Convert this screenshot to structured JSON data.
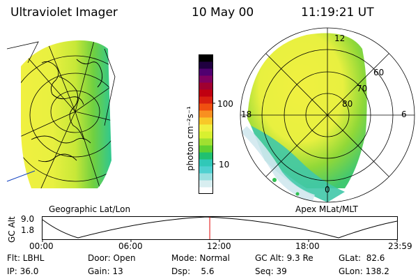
{
  "header": {
    "instrument": "Ultraviolet Imager",
    "date": "10 May 00",
    "time": "11:19:21 UT"
  },
  "left_panel": {
    "caption": "Geographic Lat/Lon"
  },
  "right_panel": {
    "caption": "Apex MLat/MLT",
    "mlt_labels": {
      "top": "12",
      "left": "18",
      "right": "6",
      "bottom": "0"
    },
    "lat_labels": [
      "60",
      "70",
      "80"
    ]
  },
  "colorbar": {
    "unit_label": "photon cm⁻²s⁻¹",
    "tick_100": "100",
    "tick_10": "10",
    "colors": [
      "#ffffff",
      "#d8eef0",
      "#9ae0e0",
      "#4fd0d0",
      "#30c8b8",
      "#20c070",
      "#60d030",
      "#a0e030",
      "#d8f030",
      "#f0f040",
      "#f8c828",
      "#f89020",
      "#f05010",
      "#d82010",
      "#c00010",
      "#a00030",
      "#800060",
      "#500070",
      "#200040",
      "#000000"
    ]
  },
  "timeline": {
    "ylabel": "GC Alt",
    "y_max": "9.0",
    "y_min": "1.8",
    "ticks": [
      "00:00",
      "06:00",
      "12:00",
      "18:00",
      "23:59"
    ],
    "marker_time_hours": 11.32
  },
  "info": {
    "row1": {
      "flt": "Flt: LBHL",
      "door": "Door: Open",
      "mode": "Mode: Normal",
      "gcalt": "GC Alt: 9.3 Re",
      "glat": "GLat:  82.6"
    },
    "row2": {
      "ip": "IP: 36.0",
      "gain": "Gain: 13",
      "dsp": "Dsp:    5.6",
      "seq": "Seq: 39",
      "glon": "GLon: 138.2"
    }
  }
}
